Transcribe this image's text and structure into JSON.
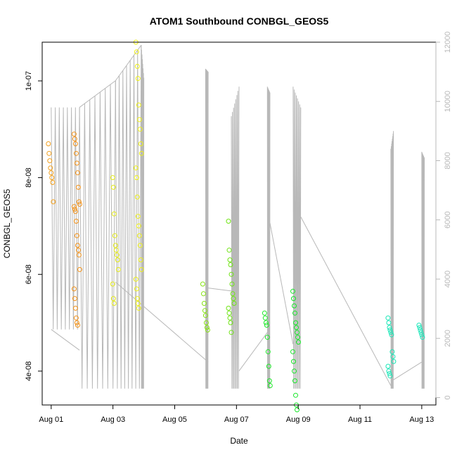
{
  "chart_data": {
    "type": "scatter",
    "title": "ATOM1 Southbound CONBGL_GEOS5",
    "xlabel": "Date",
    "ylabel": "CONBGL_GEOS5",
    "x_ticks": [
      "Aug 01",
      "Aug 03",
      "Aug 05",
      "Aug 07",
      "Aug 09",
      "Aug 11",
      "Aug 13"
    ],
    "y_ticks": [
      "4e-08",
      "6e-08",
      "8e-08",
      "1e-07"
    ],
    "y2_ticks": [
      "0",
      "2000",
      "4000",
      "6000",
      "8000",
      "10000",
      "12000"
    ],
    "xlim": [
      "2016-07-31T17:00",
      "2016-08-13T11:00"
    ],
    "ylim": [
      3.3e-08,
      1.08e-07
    ],
    "y2lim": [
      -250,
      12000
    ],
    "point_series": [
      {
        "x": "2016-08-01T00:00",
        "y": [
          8.7e-08,
          8.5e-08,
          8.35e-08,
          8.2e-08,
          8.1e-08,
          8e-08,
          7.9e-08,
          7.5e-08
        ],
        "color": "#f3a01c"
      },
      {
        "x": "2016-08-01T20:00",
        "y": [
          8.9e-08,
          8.8e-08,
          8.7e-08,
          8.5e-08,
          8.3e-08,
          8.1e-08,
          7.8e-08,
          7.5e-08,
          7.45e-08,
          7.4e-08,
          7.35e-08,
          7.3e-08,
          7.1e-08,
          6.8e-08,
          6.6e-08,
          6.5e-08,
          6.4e-08,
          6.1e-08,
          5.7e-08,
          5.5e-08,
          5.3e-08,
          5.1e-08,
          5e-08,
          4.95e-08
        ],
        "color": "#f39218"
      },
      {
        "x": "2016-08-03T02:00",
        "y": [
          8e-08,
          7.8e-08,
          7.25e-08,
          6.8e-08,
          6.6e-08,
          6.5e-08,
          6.4e-08,
          6.3e-08,
          6.1e-08,
          5.8e-08,
          5.5e-08,
          5.4e-08
        ],
        "color": "#e4ea16"
      },
      {
        "x": "2016-08-03T20:00",
        "y": [
          1.08e-07,
          1.06e-07,
          1.03e-07,
          1.005e-07,
          9.5e-08,
          9.2e-08,
          9e-08,
          8.7e-08,
          8.5e-08,
          8.2e-08,
          8e-08,
          7.6e-08,
          7.2e-08,
          7e-08,
          6.8e-08,
          6.6e-08,
          6.3e-08,
          6.1e-08,
          5.9e-08,
          5.7e-08,
          5.5e-08,
          5.4e-08,
          5.3e-08
        ],
        "color": "#eef016"
      },
      {
        "x": "2016-08-06T00:00",
        "y": [
          5.8e-08,
          5.6e-08,
          5.4e-08,
          5.25e-08,
          5.15e-08,
          5e-08,
          4.9e-08,
          4.85e-08
        ],
        "color": "#86e413"
      },
      {
        "x": "2016-08-06T20:00",
        "y": [
          7.1e-08,
          6.5e-08,
          6.3e-08,
          6.2e-08,
          6e-08,
          5.8e-08,
          5.6e-08,
          5.5e-08,
          5.4e-08,
          5.3e-08,
          5.2e-08,
          5.1e-08,
          5e-08,
          4.8e-08
        ],
        "color": "#6fe414"
      },
      {
        "x": "2016-08-08T00:00",
        "y": [
          5.2e-08,
          5.1e-08,
          5e-08,
          4.95e-08,
          4.7e-08,
          4.4e-08,
          4.1e-08,
          3.8e-08,
          3.7e-08
        ],
        "color": "#1fe82a"
      },
      {
        "x": "2016-08-08T22:00",
        "y": [
          5.65e-08,
          5.5e-08,
          5.35e-08,
          5.2e-08,
          5e-08,
          4.9e-08,
          4.8e-08,
          4.7e-08,
          4.6e-08,
          4.4e-08,
          4.2e-08,
          4e-08,
          3.8e-08,
          3.5e-08,
          3.3e-08,
          3.2e-08
        ],
        "color": "#19e62a"
      },
      {
        "x": "2016-08-12T00:00",
        "y": [
          5.1e-08,
          5e-08,
          4.9e-08,
          4.85e-08,
          4.8e-08,
          4.75e-08,
          4.4e-08,
          4.3e-08,
          4.2e-08,
          4.1e-08,
          4e-08,
          3.95e-08,
          3.9e-08
        ],
        "color": "#18e6b6"
      },
      {
        "x": "2016-08-13T00:00",
        "y": [
          4.95e-08,
          4.9e-08,
          4.85e-08,
          4.8e-08,
          4.75e-08,
          4.7e-08
        ],
        "color": "#18e6b8"
      }
    ],
    "profile_series": [
      {
        "x": [
          "2016-08-01T00:00",
          "2016-08-01T00:01",
          "2016-08-01T22:00"
        ],
        "y2": [
          9800,
          2300,
          9800
        ]
      },
      {
        "x": [
          "2016-08-01T22:00",
          "2016-08-01T22:01",
          "2016-08-03T02:00"
        ],
        "y2": [
          9800,
          300,
          10700
        ]
      },
      {
        "x": [
          "2016-08-03T02:00",
          "2016-08-03T02:01",
          "2016-08-03T22:00"
        ],
        "y2": [
          10700,
          300,
          11900
        ]
      },
      {
        "x": [
          "2016-08-03T22:00",
          "2016-08-03T22:01",
          "2016-08-04T00:00"
        ],
        "y2": [
          11900,
          300,
          10800
        ]
      },
      {
        "x": [
          "2016-08-06T00:00",
          "2016-08-06T00:01",
          "2016-08-06T02:00"
        ],
        "y2": [
          11100,
          300,
          11000
        ]
      },
      {
        "x": [
          "2016-08-06T20:00",
          "2016-08-06T20:01",
          "2016-08-07T02:00"
        ],
        "y2": [
          9500,
          300,
          10500
        ]
      },
      {
        "x": [
          "2016-08-08T00:00",
          "2016-08-08T00:01",
          "2016-08-08T02:00"
        ],
        "y2": [
          10500,
          300,
          10300
        ]
      },
      {
        "x": [
          "2016-08-08T20:00",
          "2016-08-08T20:01",
          "2016-08-09T02:00"
        ],
        "y2": [
          10500,
          300,
          9800
        ]
      },
      {
        "x": [
          "2016-08-12T00:00",
          "2016-08-12T00:01",
          "2016-08-12T02:00"
        ],
        "y2": [
          8400,
          300,
          9000
        ]
      },
      {
        "x": [
          "2016-08-13T00:00",
          "2016-08-13T00:01",
          "2016-08-13T02:00"
        ],
        "y2": [
          8300,
          300,
          8100
        ]
      }
    ],
    "transit_lines": [
      {
        "x": [
          "2016-08-01T00:00",
          "2016-08-01T22:00"
        ],
        "y2": [
          2300,
          1600
        ]
      },
      {
        "x": [
          "2016-08-01T22:00",
          "2016-08-03T02:00"
        ],
        "y2": [
          9800,
          10700
        ]
      },
      {
        "x": [
          "2016-08-03T02:00",
          "2016-08-03T22:00"
        ],
        "y2": [
          10700,
          11900
        ]
      },
      {
        "x": [
          "2016-08-03T02:00",
          "2016-08-06T02:00"
        ],
        "y2": [
          3900,
          1200
        ]
      },
      {
        "x": [
          "2016-08-06T02:00",
          "2016-08-06T20:00"
        ],
        "y2": [
          3700,
          3600
        ]
      },
      {
        "x": [
          "2016-08-07T02:00",
          "2016-08-08T00:00"
        ],
        "y2": [
          900,
          2200
        ]
      },
      {
        "x": [
          "2016-08-08T02:00",
          "2016-08-08T20:00"
        ],
        "y2": [
          5900,
          1800
        ]
      },
      {
        "x": [
          "2016-08-09T02:00",
          "2016-08-12T00:00"
        ],
        "y2": [
          6100,
          400
        ]
      },
      {
        "x": [
          "2016-08-12T02:00",
          "2016-08-13T00:00"
        ],
        "y2": [
          600,
          1200
        ]
      }
    ],
    "profile_color": "#b8b8b8",
    "marker": "open-circle",
    "grid": false,
    "legend": "none"
  }
}
